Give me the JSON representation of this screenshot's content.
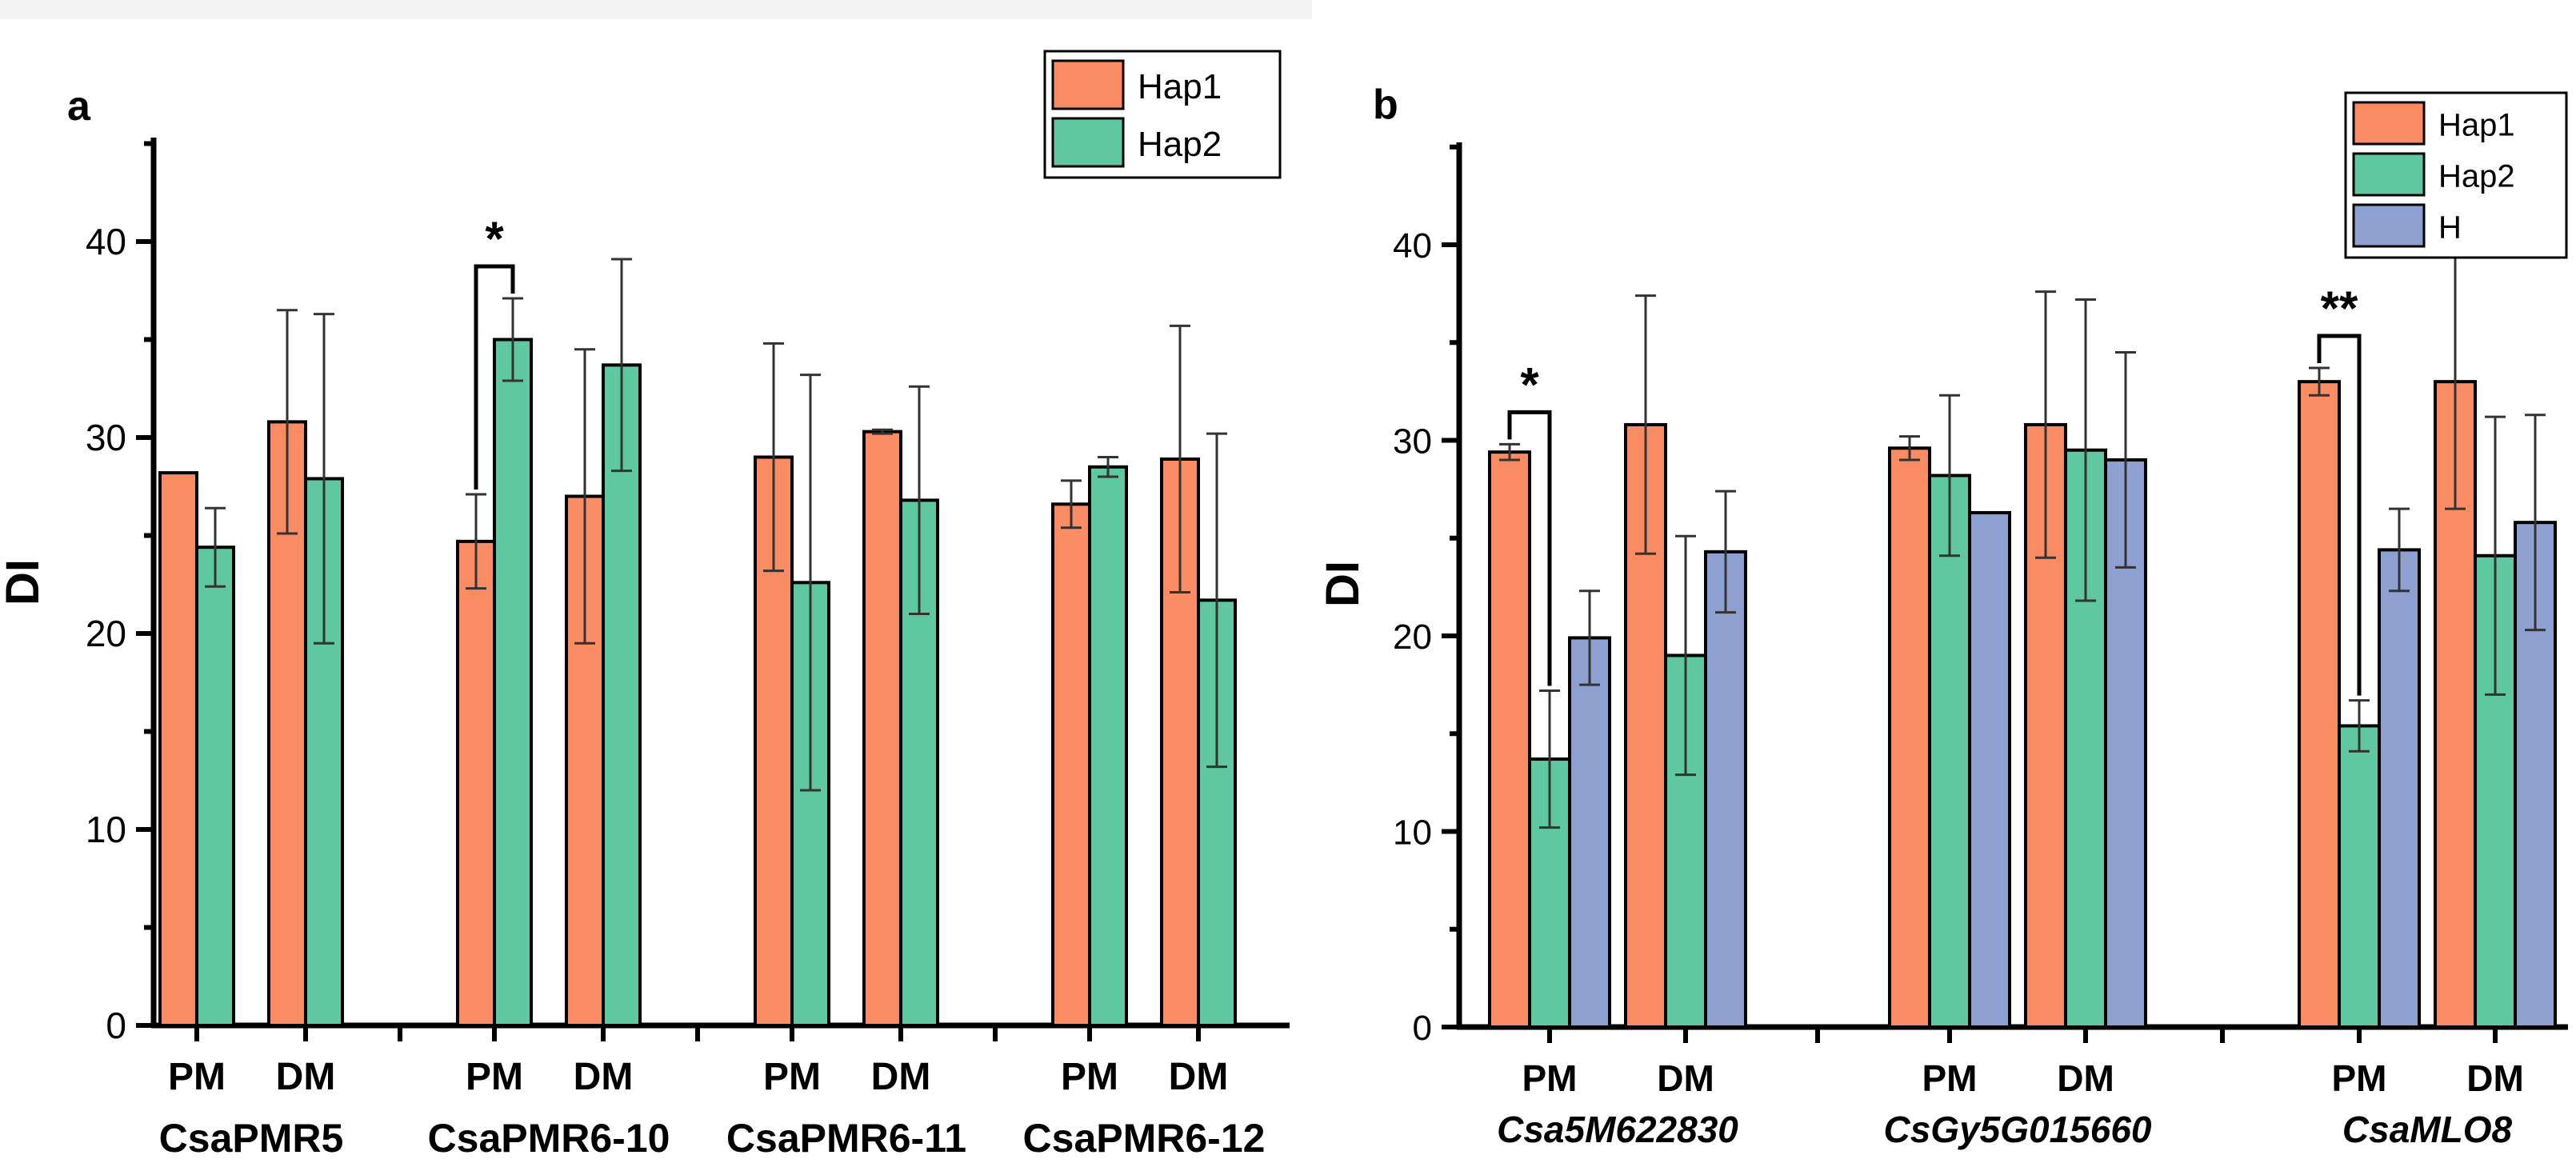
{
  "chart_data": [
    {
      "panel_label": "a",
      "type": "bar",
      "ylabel": "DI",
      "ylim": [
        0,
        45
      ],
      "yticks": [
        0,
        10,
        20,
        30,
        40
      ],
      "legend_position": "top-right",
      "series_names": [
        "Hap1",
        "Hap2"
      ],
      "colors": {
        "Hap1": "#fa8c64",
        "Hap2": "#5fc8a0"
      },
      "groups": [
        {
          "gene": "CsaPMR5",
          "italic": false,
          "conditions": [
            {
              "label": "PM",
              "values": [
                28.2,
                24.4
              ],
              "errors": [
                0.0,
                2.0
              ]
            },
            {
              "label": "DM",
              "values": [
                30.8,
                27.9
              ],
              "errors": [
                5.7,
                8.4
              ]
            }
          ]
        },
        {
          "gene": "CsaPMR6-10",
          "italic": false,
          "conditions": [
            {
              "label": "PM",
              "values": [
                24.7,
                35.0
              ],
              "errors": [
                2.4,
                2.1
              ],
              "significance": "*"
            },
            {
              "label": "DM",
              "values": [
                27.0,
                33.7
              ],
              "errors": [
                7.5,
                5.4
              ]
            }
          ]
        },
        {
          "gene": "CsaPMR6-11",
          "italic": false,
          "conditions": [
            {
              "label": "PM",
              "values": [
                29.0,
                22.6
              ],
              "errors": [
                5.8,
                10.6
              ]
            },
            {
              "label": "DM",
              "values": [
                30.3,
                26.8
              ],
              "errors": [
                0.1,
                5.8
              ]
            }
          ]
        },
        {
          "gene": "CsaPMR6-12",
          "italic": false,
          "conditions": [
            {
              "label": "PM",
              "values": [
                26.6,
                28.5
              ],
              "errors": [
                1.2,
                0.5
              ]
            },
            {
              "label": "DM",
              "values": [
                28.9,
                21.7
              ],
              "errors": [
                6.8,
                8.5
              ]
            }
          ]
        }
      ]
    },
    {
      "panel_label": "b",
      "type": "bar",
      "ylabel": "DI",
      "ylim": [
        0,
        45
      ],
      "yticks": [
        0,
        10,
        20,
        30,
        40
      ],
      "legend_position": "top-right",
      "series_names": [
        "Hap1",
        "Hap2",
        "H"
      ],
      "colors": {
        "Hap1": "#fa8c64",
        "Hap2": "#5fc8a0",
        "H": "#8ea0d0"
      },
      "groups": [
        {
          "gene": "Csa5M622830",
          "italic": true,
          "conditions": [
            {
              "label": "PM",
              "values": [
                29.4,
                13.7,
                19.9
              ],
              "errors": [
                0.4,
                3.5,
                2.4
              ],
              "significance": "*"
            },
            {
              "label": "DM",
              "values": [
                30.8,
                19.0,
                24.3
              ],
              "errors": [
                6.6,
                6.1,
                3.1
              ]
            }
          ]
        },
        {
          "gene": "CsGy5G015660",
          "italic": true,
          "conditions": [
            {
              "label": "PM",
              "values": [
                29.6,
                28.2,
                26.3
              ],
              "errors": [
                0.6,
                4.1,
                0.0
              ]
            },
            {
              "label": "DM",
              "values": [
                30.8,
                29.5,
                29.0
              ],
              "errors": [
                6.8,
                7.7,
                5.5
              ]
            }
          ]
        },
        {
          "gene": "CsaMLO8",
          "italic": true,
          "conditions": [
            {
              "label": "PM",
              "values": [
                33.0,
                15.4,
                24.4
              ],
              "errors": [
                0.7,
                1.3,
                2.1
              ],
              "significance": "**"
            },
            {
              "label": "DM",
              "values": [
                33.0,
                24.1,
                25.8
              ],
              "errors": [
                6.5,
                7.1,
                5.5
              ]
            }
          ]
        }
      ]
    }
  ]
}
